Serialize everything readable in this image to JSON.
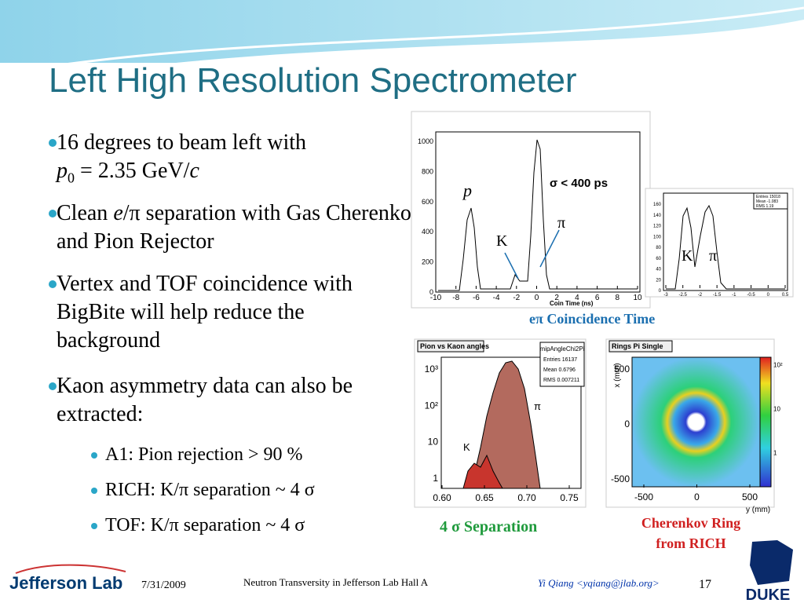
{
  "title": "Left High Resolution Spectrometer",
  "bullets": [
    {
      "parts": [
        "16 degrees to beam left with",
        "p",
        "0",
        " = 2.35 GeV/",
        "c"
      ]
    },
    {
      "parts": [
        "Clean ",
        "e",
        "/π separation with Gas Cherenkov and Pion Rejector"
      ]
    },
    {
      "parts": [
        "Vertex and TOF coincidence with BigBite will help reduce the background"
      ]
    },
    {
      "parts": [
        "Kaon asymmetry data can also be extracted:"
      ],
      "sub": [
        "A1: Pion rejection > 90 %",
        "RICH: K/π separation ~ 4 σ",
        "TOF: K/π separation  ~ 4 σ"
      ]
    }
  ],
  "figures": {
    "coin_time": {
      "yticks": [
        "1000",
        "800",
        "600",
        "400",
        "200",
        "0"
      ],
      "xticks": [
        "-10",
        "-8",
        "-6",
        "-4",
        "-2",
        "0",
        "2",
        "4",
        "6",
        "8",
        "10"
      ],
      "xlabel": "Coin Time (ns)",
      "sigma": "σ < 400 ps",
      "p": "p",
      "pi": "π",
      "k": "K"
    },
    "coin_zoom": {
      "yticks": [
        "160",
        "140",
        "120",
        "100",
        "80",
        "60",
        "40",
        "20",
        "0"
      ],
      "xticks": [
        "-3",
        "-2.5",
        "-2",
        "-1.5",
        "-1",
        "-0.5",
        "0",
        "0.5"
      ],
      "stats": [
        "Entries 15018",
        "Mean -1.083",
        "RMS 1.19"
      ],
      "k": "K",
      "pi": "π"
    },
    "coin_caption": "eπ Coincidence Time",
    "angles": {
      "title": "Pion vs Kaon angles",
      "stats": [
        "mipAngleChi2Pi",
        "Entries   16137",
        "Mean   0.6796",
        "RMS   0.007211"
      ],
      "yticks": [
        "10³",
        "10²",
        "10",
        "1"
      ],
      "xticks": [
        "0.60",
        "0.65",
        "0.70",
        "0.75"
      ],
      "pi": "π",
      "k": "K"
    },
    "angles_caption": "4 σ Separation",
    "rich": {
      "title": "Rings Pi Single",
      "yticks": [
        "500",
        "0",
        "-500"
      ],
      "xticks": [
        "-500",
        "0",
        "500"
      ],
      "ylabel": "x (mm)",
      "xlabel": "y (mm)",
      "zticks": [
        "10²",
        "10",
        "1"
      ]
    },
    "rich_caption": [
      "Cherenkov Ring",
      "from RICH"
    ]
  },
  "footer": {
    "logo": "Jefferson Lab",
    "date": "7/31/2009",
    "talk": "Neutron Transversity in Jefferson Lab Hall A",
    "author": "Yi Qiang <yqiang@jlab.org>",
    "page": "17",
    "duke": "DUKE"
  }
}
